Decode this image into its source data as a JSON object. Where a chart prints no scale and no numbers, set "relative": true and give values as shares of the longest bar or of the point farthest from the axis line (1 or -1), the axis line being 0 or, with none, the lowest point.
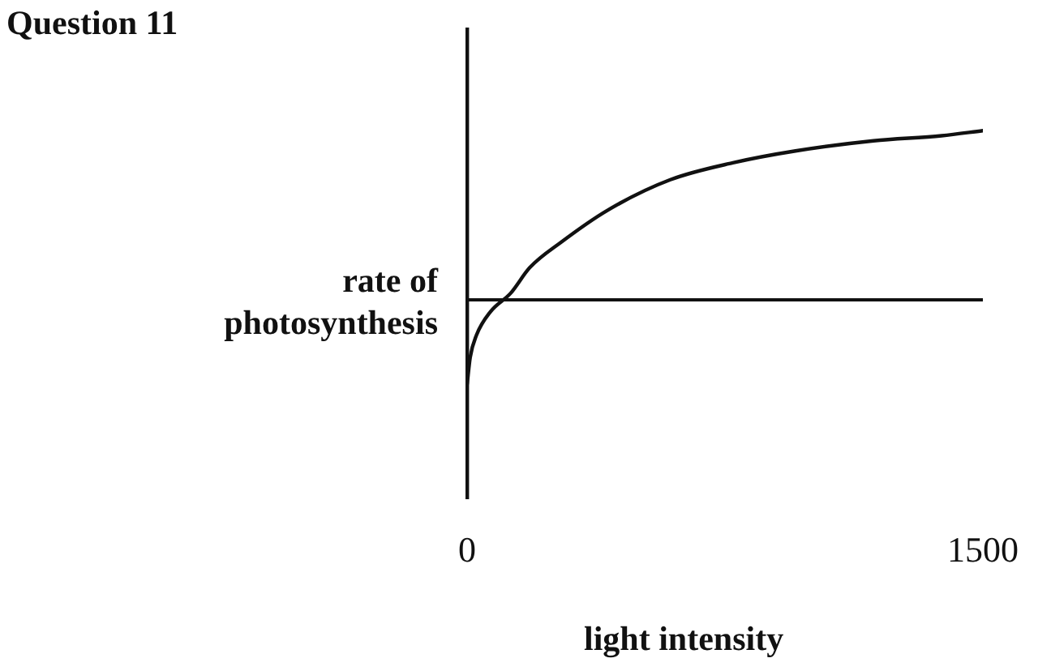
{
  "chart_data": {
    "type": "line",
    "title": "Question 11",
    "xlabel": "light intensity",
    "ylabel": "rate of photosynthesis",
    "relative": true,
    "xlim": [
      0,
      1500
    ],
    "xticks": [
      0,
      1500
    ],
    "x": [
      0,
      9,
      27,
      68,
      127,
      182,
      273,
      409,
      591,
      773,
      955,
      1182,
      1380,
      1500
    ],
    "series": [
      {
        "color": "#111111",
        "values": [
          -0.5,
          -0.34,
          -0.21,
          -0.07,
          0.04,
          0.19,
          0.34,
          0.53,
          0.71,
          0.81,
          0.88,
          0.94,
          0.97,
          1
        ]
      }
    ],
    "ref_lines": [
      {
        "axis": "y",
        "value": 0,
        "color": "#111111"
      }
    ],
    "marker": "none",
    "line_style": "solid",
    "grid": false,
    "legend": false
  }
}
